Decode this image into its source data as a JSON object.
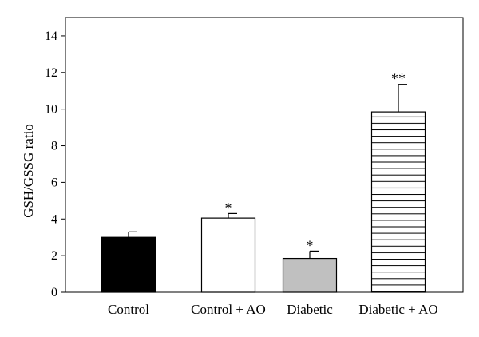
{
  "chart_data": {
    "type": "bar",
    "title": "",
    "xlabel": "",
    "ylabel": "GSH/GSSG ratio",
    "ylim": [
      0,
      15
    ],
    "yticks": [
      0,
      2,
      4,
      6,
      8,
      10,
      12,
      14
    ],
    "grid": false,
    "categories": [
      "Control",
      "Control + AO",
      "Diabetic",
      "Diabetic + AO"
    ],
    "values": [
      3.0,
      4.05,
      1.85,
      9.85
    ],
    "errors": [
      0.3,
      0.25,
      0.4,
      1.5
    ],
    "significance": [
      "",
      "*",
      "*",
      "**"
    ],
    "fills": [
      "solid-black",
      "white",
      "gray",
      "horizontal-hatch"
    ],
    "colors": {
      "black": "#000000",
      "white": "#ffffff",
      "gray": "#c0c0c0",
      "axis": "#000000"
    }
  }
}
